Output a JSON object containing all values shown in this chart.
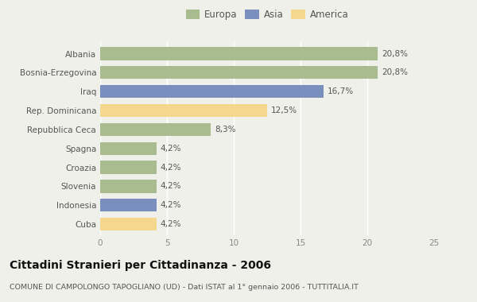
{
  "categories": [
    "Albania",
    "Bosnia-Erzegovina",
    "Iraq",
    "Rep. Dominicana",
    "Repubblica Ceca",
    "Spagna",
    "Croazia",
    "Slovenia",
    "Indonesia",
    "Cuba"
  ],
  "values": [
    20.8,
    20.8,
    16.7,
    12.5,
    8.3,
    4.2,
    4.2,
    4.2,
    4.2,
    4.2
  ],
  "labels": [
    "20,8%",
    "20,8%",
    "16,7%",
    "12,5%",
    "8,3%",
    "4,2%",
    "4,2%",
    "4,2%",
    "4,2%",
    "4,2%"
  ],
  "colors": [
    "#a8bc8f",
    "#a8bc8f",
    "#7b8fbf",
    "#f5d78e",
    "#a8bc8f",
    "#a8bc8f",
    "#a8bc8f",
    "#a8bc8f",
    "#7b8fbf",
    "#f5d78e"
  ],
  "legend": [
    {
      "label": "Europa",
      "color": "#a8bc8f"
    },
    {
      "label": "Asia",
      "color": "#7b8fbf"
    },
    {
      "label": "America",
      "color": "#f5d78e"
    }
  ],
  "xlim": [
    0,
    25
  ],
  "xticks": [
    0,
    5,
    10,
    15,
    20,
    25
  ],
  "title": "Cittadini Stranieri per Cittadinanza - 2006",
  "subtitle": "COMUNE DI CAMPOLONGO TAPOGLIANO (UD) - Dati ISTAT al 1° gennaio 2006 - TUTTITALIA.IT",
  "background_color": "#f0f0eb",
  "bar_height": 0.68,
  "grid_color": "#ffffff",
  "label_fontsize": 7.5,
  "tick_fontsize": 7.5,
  "title_fontsize": 10,
  "subtitle_fontsize": 6.8
}
